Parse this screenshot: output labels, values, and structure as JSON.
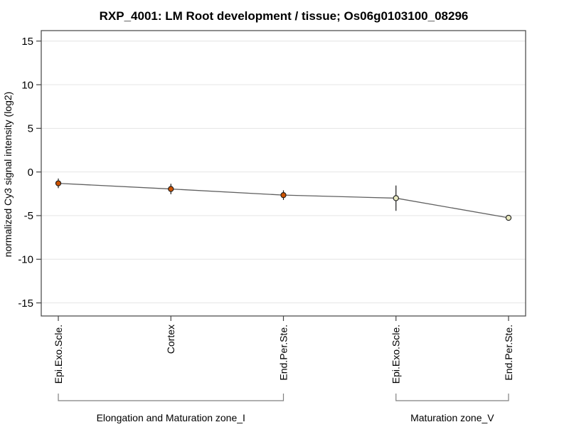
{
  "chart_data": {
    "type": "line",
    "title": "RXP_4001: LM Root development / tissue; Os06g0103100_08296",
    "ylabel": "normalized Cy3 signal intensity (log2)",
    "xlabel": "",
    "ylim": [
      -16.5,
      16.2
    ],
    "yticks": [
      15,
      10,
      5,
      0,
      -5,
      -10,
      -15
    ],
    "grid": true,
    "legend": "none",
    "categories": [
      "Epi.Exo.Scle.",
      "Cortex",
      "End.Per.Ste.",
      "Epi.Exo.Scle.",
      "End.Per.Ste."
    ],
    "values": [
      -1.3,
      -1.95,
      -2.65,
      -3.0,
      -5.25
    ],
    "errors": [
      0.55,
      0.6,
      0.55,
      1.45,
      0.3
    ],
    "point_colors": [
      "#cc5200",
      "#cc5200",
      "#cc5200",
      "#e9e9c0",
      "#e9e9c0"
    ],
    "groups": [
      {
        "label": "Elongation and Maturation zone_I",
        "from": 0,
        "to": 2
      },
      {
        "label": "Maturation zone_V",
        "from": 3,
        "to": 4
      }
    ],
    "colors": {
      "line": "#606060",
      "grid": "#e4e4e4",
      "frame": "#444444",
      "point_stroke": "#1a1a1a",
      "bracket": "#808080",
      "text": "#000000",
      "background": "#ffffff"
    }
  }
}
